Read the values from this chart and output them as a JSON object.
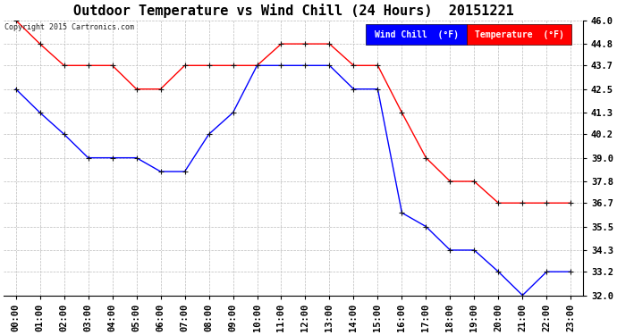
{
  "title": "Outdoor Temperature vs Wind Chill (24 Hours)  20151221",
  "copyright": "Copyright 2015 Cartronics.com",
  "x_labels": [
    "00:00",
    "01:00",
    "02:00",
    "03:00",
    "04:00",
    "05:00",
    "06:00",
    "07:00",
    "08:00",
    "09:00",
    "10:00",
    "11:00",
    "12:00",
    "13:00",
    "14:00",
    "15:00",
    "16:00",
    "17:00",
    "18:00",
    "19:00",
    "20:00",
    "21:00",
    "22:00",
    "23:00"
  ],
  "temperature": [
    46.0,
    44.8,
    43.7,
    43.7,
    43.7,
    42.5,
    42.5,
    43.7,
    43.7,
    43.7,
    43.7,
    44.8,
    44.8,
    44.8,
    43.7,
    43.7,
    41.3,
    39.0,
    37.8,
    37.8,
    36.7,
    36.7,
    36.7,
    36.7
  ],
  "wind_chill": [
    42.5,
    41.3,
    40.2,
    39.0,
    39.0,
    39.0,
    38.3,
    38.3,
    40.2,
    41.3,
    43.7,
    43.7,
    43.7,
    43.7,
    42.5,
    42.5,
    36.2,
    35.5,
    34.3,
    34.3,
    33.2,
    32.0,
    33.2,
    33.2
  ],
  "ylim_min": 32.0,
  "ylim_max": 46.0,
  "yticks": [
    32.0,
    33.2,
    34.3,
    35.5,
    36.7,
    37.8,
    39.0,
    40.2,
    41.3,
    42.5,
    43.7,
    44.8,
    46.0
  ],
  "temp_color": "#ff0000",
  "wind_chill_color": "#0000ff",
  "bg_color": "#ffffff",
  "grid_color": "#bbbbbb",
  "title_fontsize": 11,
  "tick_fontsize": 7.5,
  "copyright_fontsize": 6,
  "legend_fontsize": 7,
  "legend_wind_chill_bg": "#0000ff",
  "legend_temp_bg": "#ff0000",
  "marker_color": "#111111",
  "marker_size": 3.0,
  "line_width": 1.0
}
